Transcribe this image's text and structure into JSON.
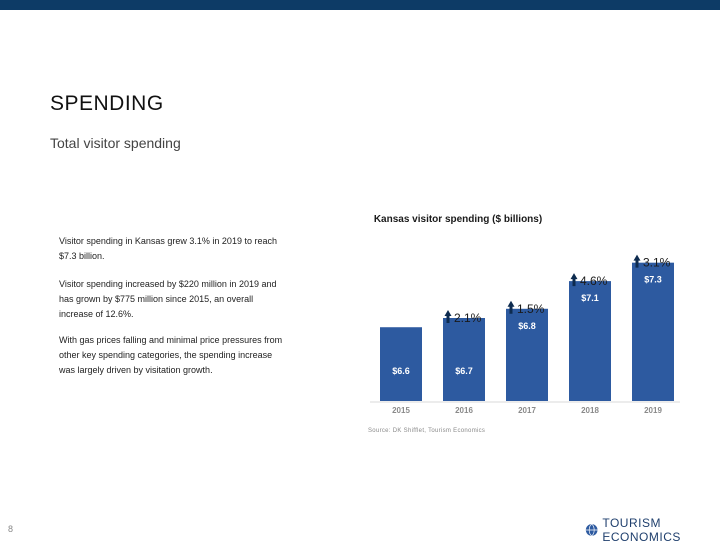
{
  "header": {
    "title": "SPENDING",
    "subtitle": "Total visitor spending"
  },
  "bullets": [
    "Visitor spending in Kansas grew 3.1% in 2019 to reach $7.3 billion.",
    "Visitor spending increased by $220 million in 2019 and has grown by $775 million since 2015, an overall increase of 12.6%.",
    "With gas prices falling and minimal price pressures from other key spending categories, the spending increase was largely driven by visitation growth."
  ],
  "chart_data": {
    "type": "bar",
    "title": "Kansas visitor spending ($ billions)",
    "categories": [
      "2015",
      "2016",
      "2017",
      "2018",
      "2019"
    ],
    "values": [
      6.6,
      6.7,
      6.8,
      7.1,
      7.3
    ],
    "value_labels": [
      "$6.6",
      "$6.7",
      "$6.8",
      "$7.1",
      "$7.3"
    ],
    "growth_labels": [
      "",
      "2.1%",
      "1.5%",
      "4.6%",
      "3.1%"
    ],
    "ylim": [
      5.8,
      7.6
    ],
    "xlabel": "",
    "ylabel": "",
    "source": "Source: DK Shifflet, Tourism Economics"
  },
  "colors": {
    "bar": "#2d5aa0",
    "arrow": "#0d2b4f",
    "top_bar": "#0d3b66"
  },
  "footer": {
    "page_number": "8",
    "logo_text": "TOURISM ECONOMICS"
  }
}
